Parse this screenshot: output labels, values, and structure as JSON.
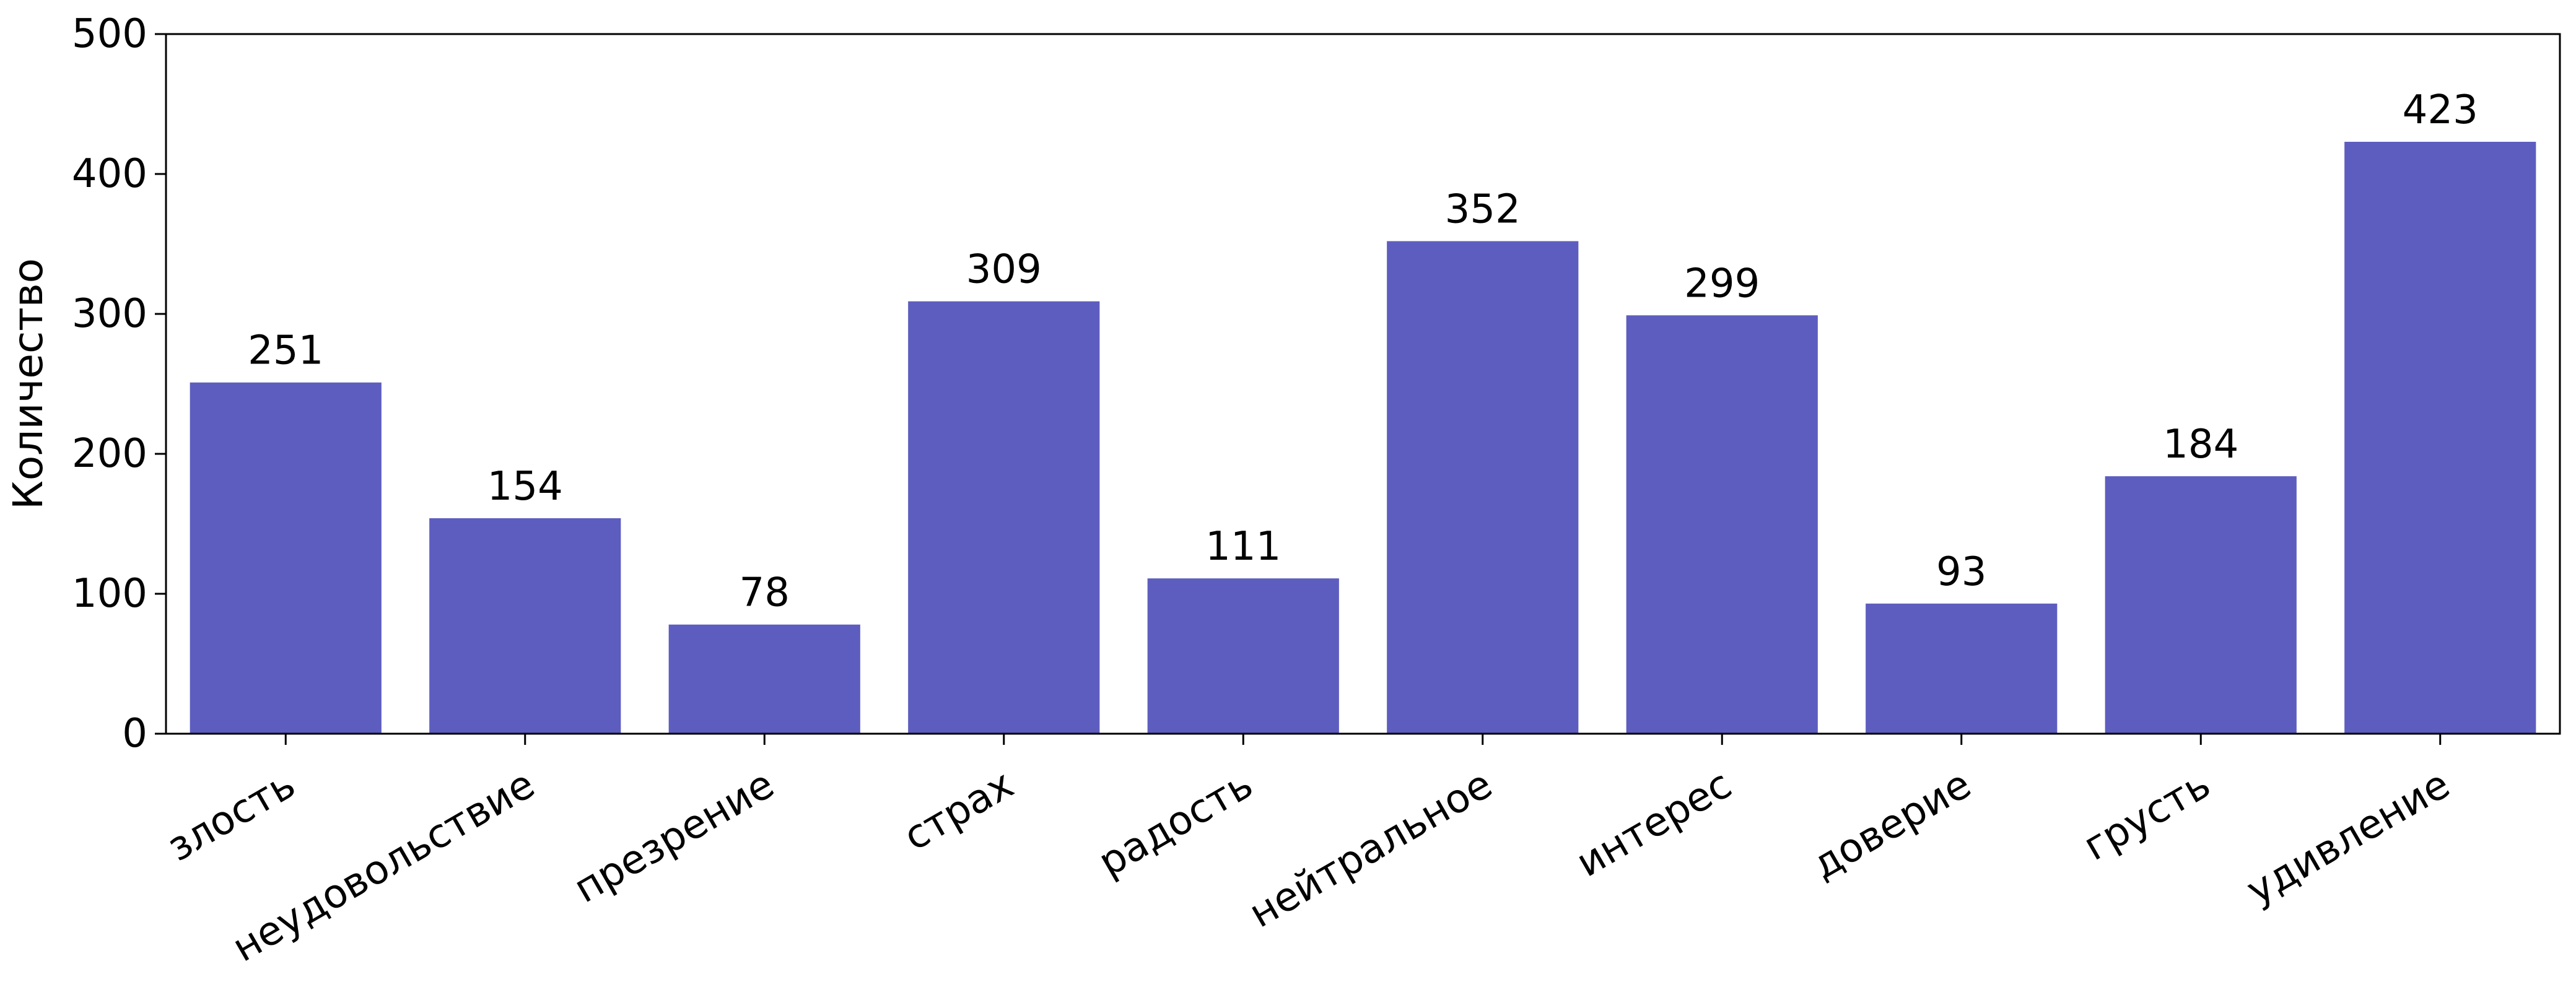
{
  "chart_data": {
    "type": "bar",
    "categories": [
      "злость",
      "неудовольствие",
      "презрение",
      "страх",
      "радость",
      "нейтральное",
      "интерес",
      "доверие",
      "грусть",
      "удивление"
    ],
    "values": [
      251,
      154,
      78,
      309,
      111,
      352,
      299,
      93,
      184,
      423
    ],
    "xlabel": "",
    "ylabel": "Количество",
    "ylim": [
      0,
      500
    ],
    "yticks": [
      0,
      100,
      200,
      300,
      400,
      500
    ],
    "bar_color": "#5d5dbf",
    "grid": false,
    "data_labels": true,
    "x_tick_rotation": 30
  }
}
